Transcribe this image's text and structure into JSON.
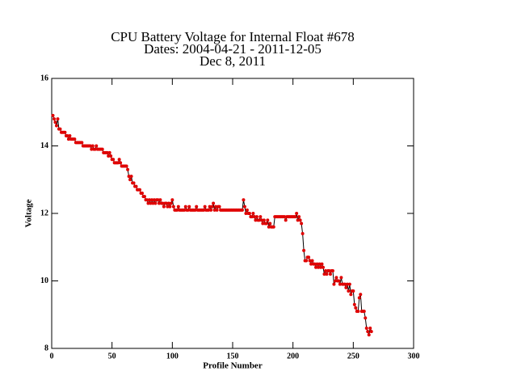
{
  "chart_data": {
    "type": "line",
    "title": [
      "CPU Battery Voltage for Internal Float #678",
      "Dates:  2004-04-21 -  2011-12-05",
      "Dec  8, 2011"
    ],
    "xlabel": "Profile Number",
    "ylabel": "Voltage",
    "xlim": [
      0,
      300
    ],
    "ylim": [
      8,
      16
    ],
    "xticks": [
      0,
      50,
      100,
      150,
      200,
      250,
      300
    ],
    "yticks": [
      8,
      10,
      12,
      14,
      16
    ],
    "line_color": "#000000",
    "marker_color": "#e00000",
    "x": [
      1,
      2,
      3,
      4,
      5,
      6,
      7,
      8,
      9,
      10,
      11,
      12,
      13,
      14,
      15,
      16,
      17,
      18,
      19,
      20,
      21,
      22,
      23,
      24,
      25,
      26,
      27,
      28,
      29,
      30,
      31,
      32,
      33,
      34,
      35,
      36,
      37,
      38,
      39,
      40,
      41,
      42,
      43,
      44,
      45,
      46,
      47,
      48,
      49,
      50,
      51,
      52,
      53,
      54,
      55,
      56,
      57,
      58,
      59,
      60,
      61,
      62,
      63,
      64,
      65,
      66,
      67,
      68,
      69,
      70,
      71,
      72,
      73,
      74,
      75,
      76,
      77,
      78,
      79,
      80,
      81,
      82,
      83,
      84,
      85,
      86,
      87,
      88,
      89,
      90,
      91,
      92,
      93,
      94,
      95,
      96,
      97,
      98,
      99,
      100,
      101,
      102,
      103,
      104,
      105,
      106,
      107,
      108,
      109,
      110,
      111,
      112,
      113,
      114,
      115,
      116,
      117,
      118,
      119,
      120,
      121,
      122,
      123,
      124,
      125,
      126,
      127,
      128,
      129,
      130,
      131,
      132,
      133,
      134,
      135,
      136,
      137,
      138,
      139,
      140,
      141,
      142,
      143,
      144,
      145,
      146,
      147,
      148,
      149,
      150,
      151,
      152,
      153,
      154,
      155,
      156,
      157,
      158,
      159,
      160,
      161,
      162,
      163,
      164,
      165,
      166,
      167,
      168,
      169,
      170,
      171,
      172,
      173,
      174,
      175,
      176,
      177,
      178,
      179,
      180,
      181,
      182,
      183,
      184,
      185,
      186,
      187,
      188,
      189,
      190,
      191,
      192,
      193,
      194,
      195,
      196,
      197,
      198,
      199,
      200,
      201,
      202,
      203,
      204,
      205,
      206,
      207,
      208,
      209,
      210,
      211,
      212,
      213,
      214,
      215,
      216,
      217,
      218,
      219,
      220,
      221,
      222,
      223,
      224,
      225,
      226,
      227,
      228,
      229,
      230,
      231,
      232,
      233,
      234,
      235,
      236,
      237,
      238,
      239,
      240,
      241,
      242,
      243,
      244,
      245,
      246,
      247,
      248,
      249,
      250,
      251,
      252,
      253,
      254,
      255,
      256,
      257,
      258,
      259,
      260,
      261,
      262,
      263,
      264,
      265
    ],
    "values": [
      14.9,
      14.8,
      14.7,
      14.6,
      14.8,
      14.5,
      14.5,
      14.4,
      14.4,
      14.4,
      14.4,
      14.3,
      14.3,
      14.2,
      14.3,
      14.2,
      14.2,
      14.2,
      14.2,
      14.1,
      14.1,
      14.1,
      14.1,
      14.1,
      14.1,
      14.0,
      14.0,
      14.0,
      14.0,
      14.0,
      14.0,
      14.0,
      13.9,
      14.0,
      13.9,
      13.9,
      14.0,
      13.9,
      13.9,
      13.9,
      13.9,
      13.9,
      13.8,
      13.8,
      13.8,
      13.8,
      13.7,
      13.8,
      13.7,
      13.6,
      13.6,
      13.5,
      13.5,
      13.5,
      13.5,
      13.6,
      13.5,
      13.4,
      13.4,
      13.4,
      13.4,
      13.4,
      13.3,
      13.1,
      13.0,
      13.1,
      12.9,
      12.9,
      12.8,
      12.8,
      12.7,
      12.7,
      12.7,
      12.6,
      12.6,
      12.5,
      12.5,
      12.4,
      12.4,
      12.3,
      12.4,
      12.3,
      12.4,
      12.3,
      12.4,
      12.3,
      12.4,
      12.4,
      12.3,
      12.4,
      12.3,
      12.3,
      12.2,
      12.3,
      12.3,
      12.2,
      12.3,
      12.2,
      12.3,
      12.4,
      12.2,
      12.1,
      12.1,
      12.1,
      12.2,
      12.1,
      12.1,
      12.1,
      12.1,
      12.1,
      12.2,
      12.1,
      12.1,
      12.2,
      12.1,
      12.1,
      12.1,
      12.1,
      12.1,
      12.2,
      12.1,
      12.1,
      12.1,
      12.1,
      12.1,
      12.1,
      12.2,
      12.1,
      12.1,
      12.1,
      12.2,
      12.1,
      12.2,
      12.3,
      12.1,
      12.2,
      12.1,
      12.2,
      12.2,
      12.1,
      12.1,
      12.1,
      12.1,
      12.1,
      12.1,
      12.1,
      12.1,
      12.1,
      12.1,
      12.1,
      12.1,
      12.1,
      12.1,
      12.1,
      12.1,
      12.1,
      12.1,
      12.1,
      12.4,
      12.2,
      12.0,
      12.1,
      12.0,
      12.0,
      11.9,
      11.9,
      12.0,
      11.9,
      11.8,
      11.9,
      11.8,
      11.8,
      11.9,
      11.8,
      11.7,
      11.8,
      11.7,
      11.7,
      11.8,
      11.6,
      11.7,
      11.6,
      11.6,
      11.6,
      11.9,
      11.9,
      11.9,
      11.9,
      11.9,
      11.9,
      11.9,
      11.9,
      11.9,
      11.8,
      11.9,
      11.9,
      11.9,
      11.9,
      11.9,
      11.9,
      11.9,
      11.9,
      12.0,
      11.8,
      11.9,
      11.8,
      11.7,
      11.4,
      10.9,
      10.6,
      10.6,
      10.7,
      10.7,
      10.6,
      10.5,
      10.6,
      10.5,
      10.5,
      10.4,
      10.5,
      10.4,
      10.5,
      10.4,
      10.5,
      10.4,
      10.2,
      10.3,
      10.2,
      10.3,
      10.3,
      10.2,
      10.3,
      10.3,
      9.9,
      10.0,
      10.1,
      10.0,
      10.0,
      9.9,
      10.1,
      9.9,
      9.9,
      9.9,
      9.8,
      9.9,
      9.7,
      9.9,
      9.6,
      9.7,
      9.7,
      9.3,
      9.2,
      9.1,
      9.1,
      9.5,
      9.6,
      9.1,
      9.1,
      9.1,
      8.9,
      8.6,
      8.5,
      8.4,
      8.6,
      8.5
    ]
  }
}
